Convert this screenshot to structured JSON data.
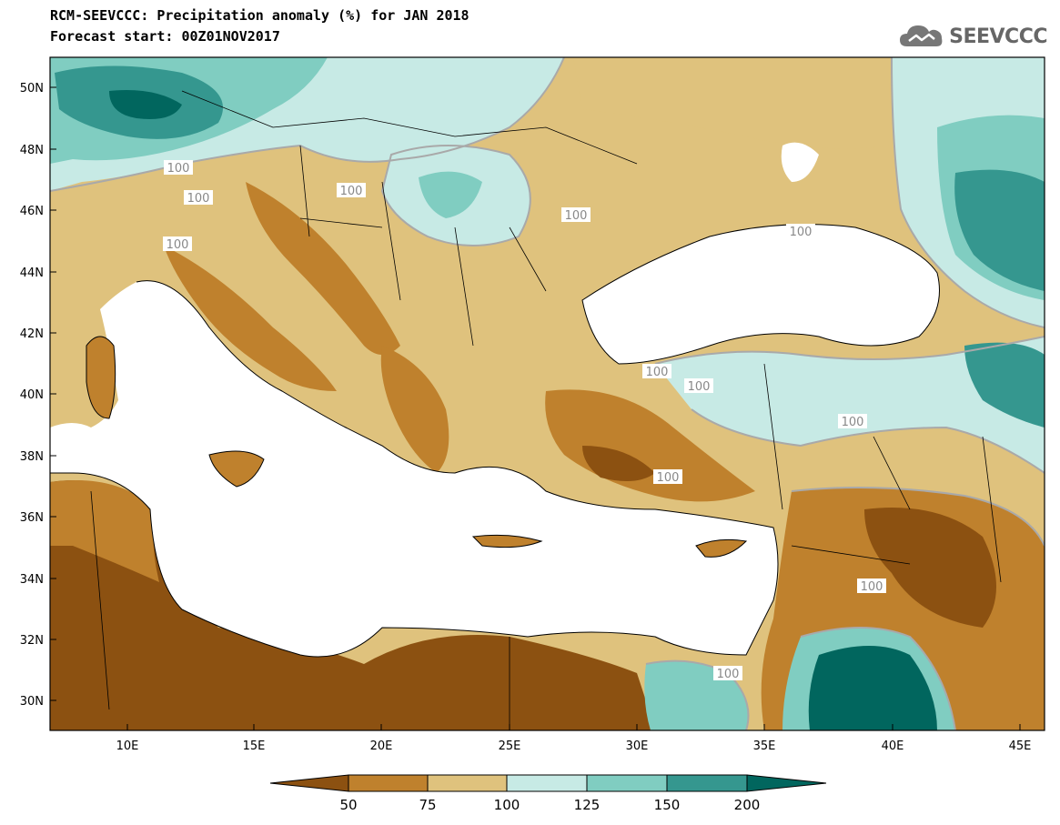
{
  "title_line1": "RCM-SEEVCCC: Precipitation anomaly (%) for JAN 2018",
  "title_line2": "Forecast start: 00Z01NOV2017",
  "logo_text": "SEEVCCC",
  "colors": {
    "cat_lt50": "#8c5111",
    "cat_50_75": "#bf812d",
    "cat_75_100": "#dfc27d",
    "cat_100_125": "#c7eae5",
    "cat_125_150": "#80cdc1",
    "cat_150_200": "#35978f",
    "cat_gt200": "#01665e",
    "contour": "#a9a9a9",
    "sea": "#ffffff"
  },
  "map": {
    "lat_labels": [
      "50N",
      "48N",
      "46N",
      "44N",
      "42N",
      "40N",
      "38N",
      "36N",
      "34N",
      "32N",
      "30N"
    ],
    "lon_labels": [
      "10E",
      "15E",
      "20E",
      "25E",
      "30E",
      "35E",
      "40E",
      "45E"
    ],
    "contour_labels": [
      "100",
      "100",
      "100",
      "100",
      "100",
      "100",
      "100",
      "100",
      "100",
      "100",
      "100",
      "100"
    ]
  },
  "colorbar": {
    "labels": [
      "50",
      "75",
      "100",
      "125",
      "150",
      "200"
    ]
  }
}
